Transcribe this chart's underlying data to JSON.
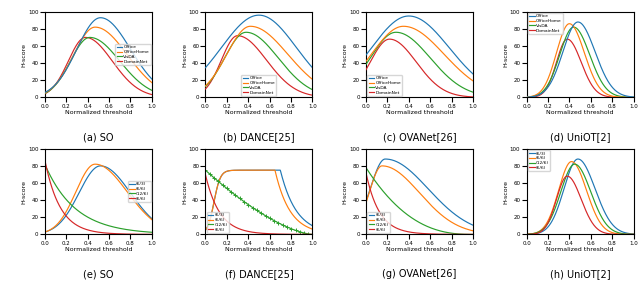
{
  "top_row_labels": [
    "(a) SO",
    "(b) DANCE[25]",
    "(c) OVANet[26]",
    "(d) UniOT[2]"
  ],
  "bottom_row_labels": [
    "(e) SO",
    "(f) DANCE[25]",
    "(g) OVANet[26]",
    "(h) UniOT[2]"
  ],
  "top_legend_entries": [
    "Office",
    "OfficeHome",
    "VisDA",
    "DomainNet"
  ],
  "bottom_legend_entries": [
    "(6/3)",
    "(6/6)",
    "(12/6)",
    "(6/6)"
  ],
  "top_colors": [
    "#1f77b4",
    "#ff7f0e",
    "#2ca02c",
    "#d62728"
  ],
  "bottom_colors": [
    "#1f77b4",
    "#ff7f0e",
    "#2ca02c",
    "#d62728"
  ],
  "xlabel": "Normalized threshold",
  "ylabel": "H-score",
  "ylim": [
    0,
    100
  ],
  "xlim": [
    0.0,
    1.0
  ]
}
